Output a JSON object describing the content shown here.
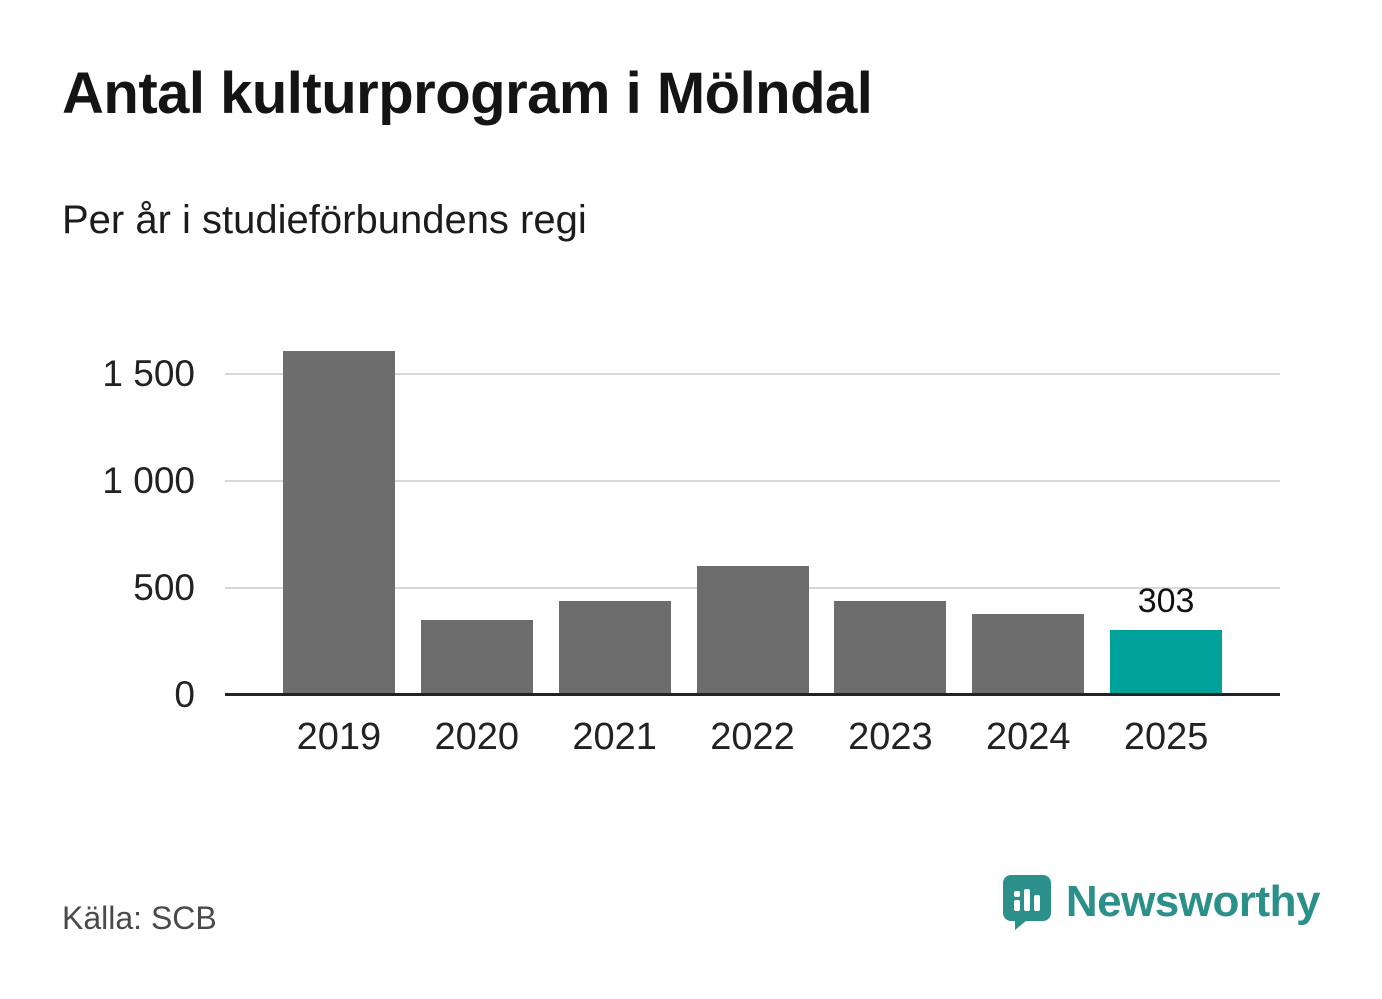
{
  "header": {
    "title": "Antal kulturprogram i Mölndal",
    "subtitle": "Per år i studieförbundens regi"
  },
  "footer": {
    "source": "Källa: SCB",
    "brand": "Newsworthy"
  },
  "colors": {
    "bar_default": "#6d6d6d",
    "bar_highlight": "#00a29a",
    "brand_teal": "#2b8f8a",
    "grid": "#d8d8d8",
    "axis": "#232323"
  },
  "chart_data": {
    "type": "bar",
    "title": "Antal kulturprogram i Mölndal",
    "subtitle": "Per år i studieförbundens regi",
    "categories": [
      "2019",
      "2020",
      "2021",
      "2022",
      "2023",
      "2024",
      "2025"
    ],
    "values": [
      1610,
      350,
      440,
      605,
      440,
      380,
      303
    ],
    "bar_colors": [
      null,
      null,
      null,
      null,
      null,
      null,
      "#00a29a"
    ],
    "value_labels": [
      null,
      null,
      null,
      null,
      null,
      null,
      "303"
    ],
    "xlabel": "",
    "ylabel": "",
    "ylim": [
      0,
      1660
    ],
    "yticks": [
      {
        "value": 0,
        "label": "0"
      },
      {
        "value": 500,
        "label": "500"
      },
      {
        "value": 1000,
        "label": "1 000"
      },
      {
        "value": 1500,
        "label": "1 500"
      }
    ],
    "grid": "horizontal",
    "legend": "none",
    "source": "Källa: SCB"
  }
}
